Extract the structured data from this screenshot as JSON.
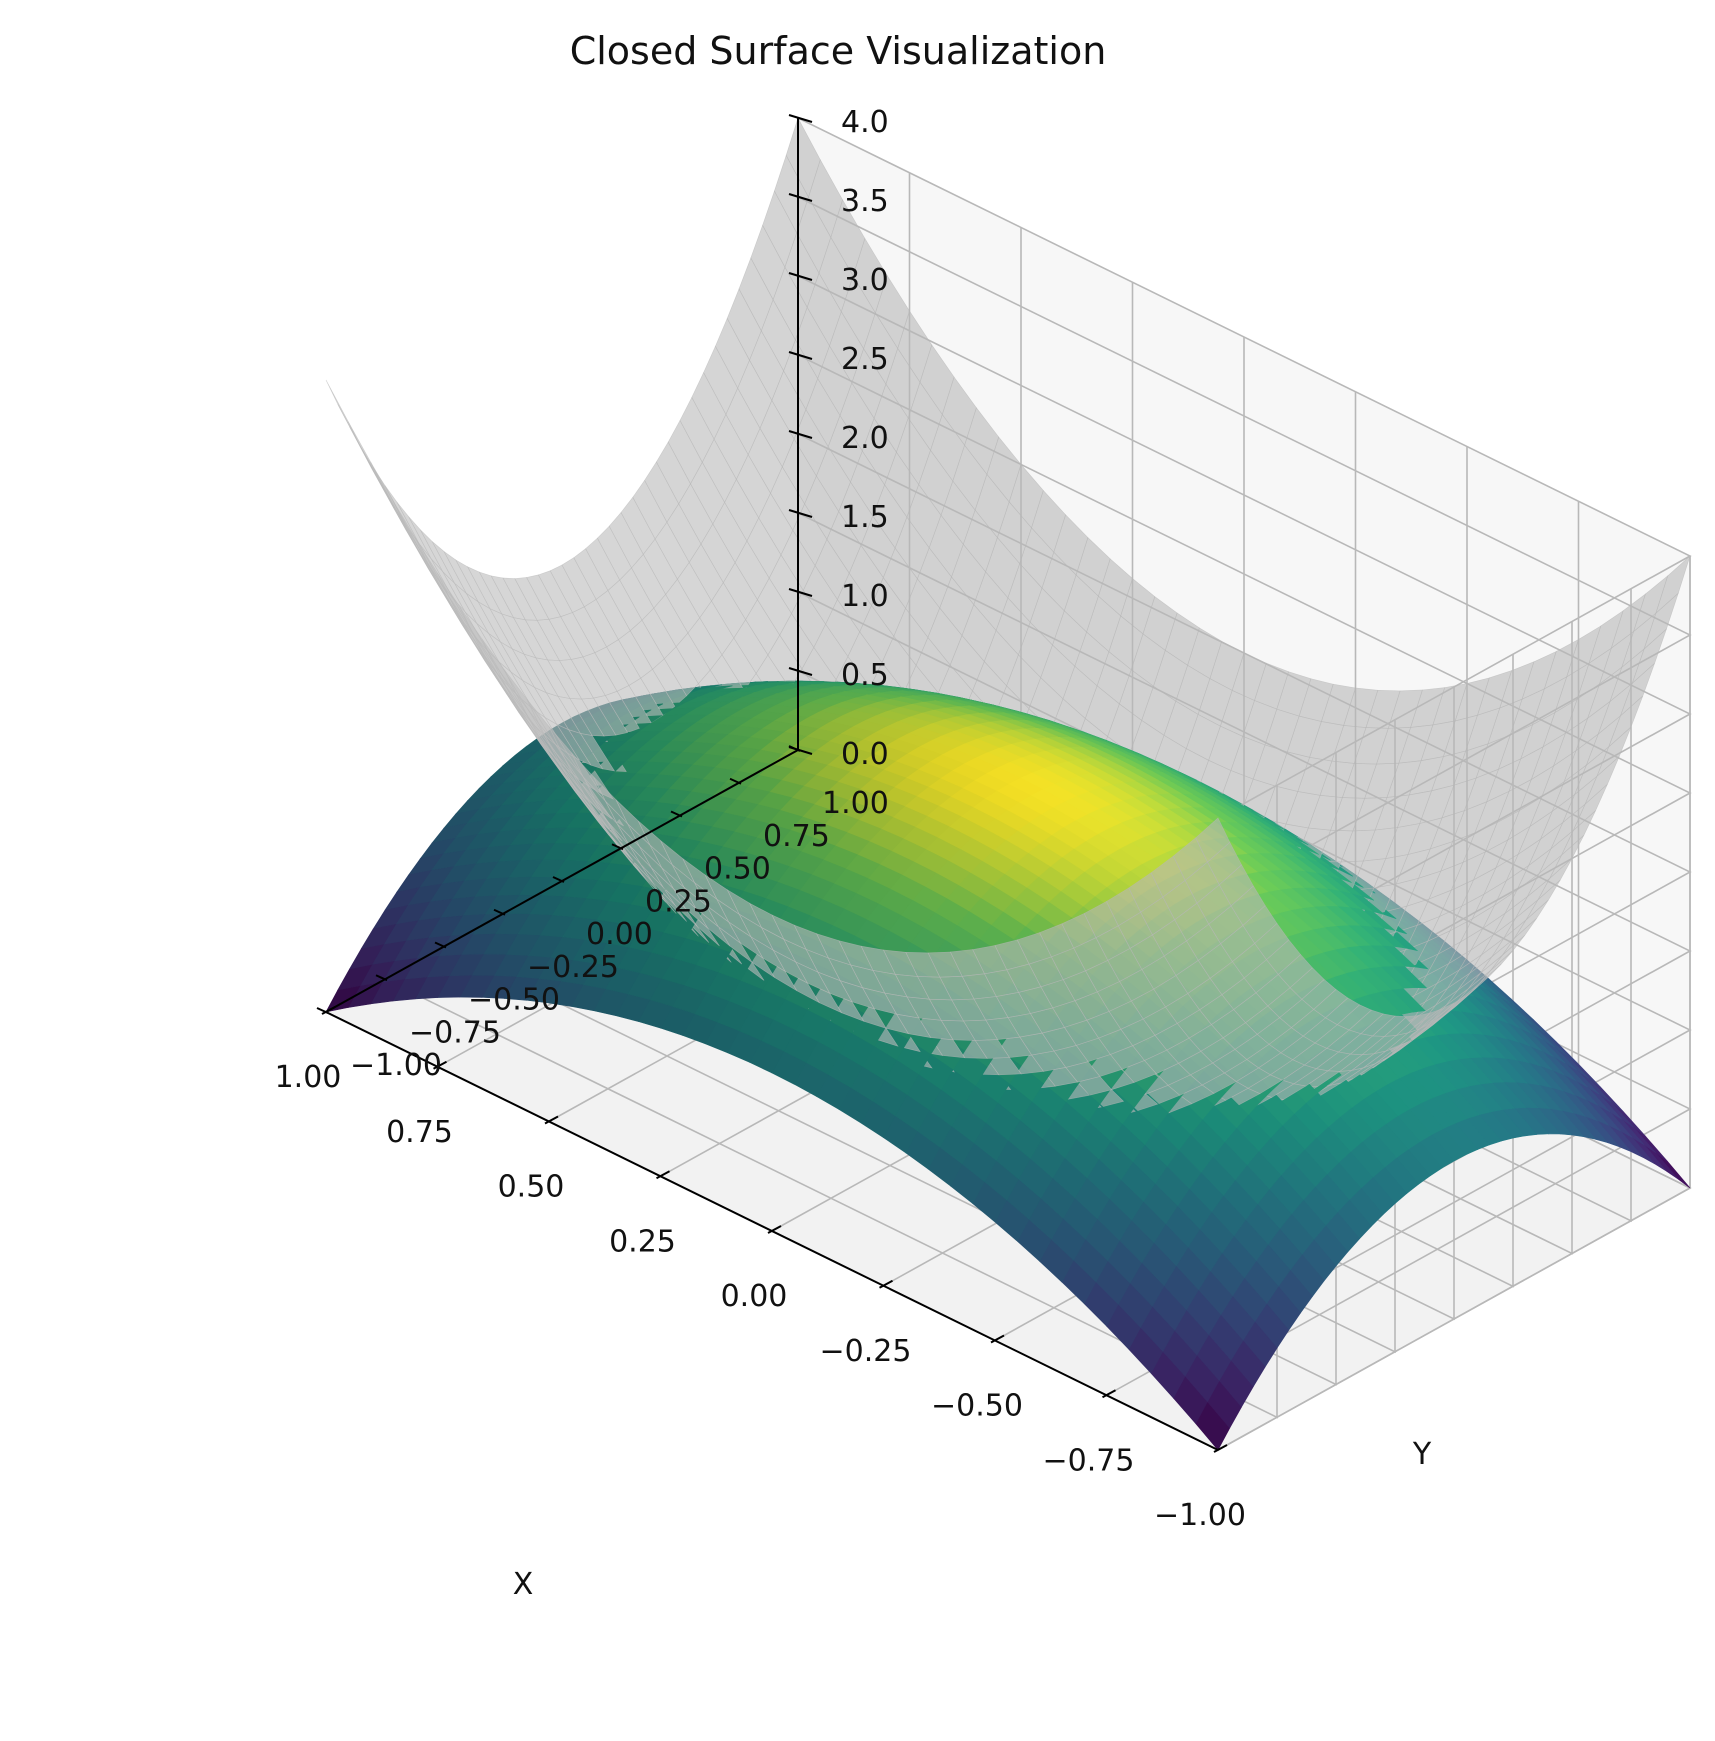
{
  "chart_data": {
    "type": "surface3d",
    "title": "Closed Surface Visualization",
    "xlabel": "X",
    "ylabel": "Y",
    "zlabel": "",
    "xlim": [
      -1.0,
      1.0
    ],
    "ylim": [
      -1.0,
      1.0
    ],
    "zlim": [
      0.0,
      4.0
    ],
    "x_ticks": [
      -1.0,
      -0.75,
      -0.5,
      -0.25,
      0.0,
      0.25,
      0.5,
      0.75,
      1.0
    ],
    "x_tick_labels": [
      "−1.00",
      "−0.75",
      "−0.50",
      "−0.25",
      "0.00",
      "0.25",
      "0.50",
      "0.75",
      "1.00"
    ],
    "y_ticks": [
      -1.0,
      -0.75,
      -0.5,
      -0.25,
      0.0,
      0.25,
      0.5,
      0.75,
      1.0
    ],
    "y_tick_labels": [
      "−1.00",
      "−0.75",
      "−0.50",
      "−0.25",
      "0.00",
      "0.25",
      "0.50",
      "0.75",
      "1.00"
    ],
    "z_ticks": [
      0.0,
      0.5,
      1.0,
      1.5,
      2.0,
      2.5,
      3.0,
      3.5,
      4.0
    ],
    "z_tick_labels": [
      "0.0",
      "0.5",
      "1.0",
      "1.5",
      "2.0",
      "2.5",
      "3.0",
      "3.5",
      "4.0"
    ],
    "grid": true,
    "series": [
      {
        "role": "upper-cap",
        "formula": "z = 2 - x^2 - y^2",
        "colormap": "viridis",
        "z_range": [
          0.0,
          2.0
        ],
        "opacity": 1.0
      },
      {
        "role": "lower-bowl",
        "formula": "z = 2*(x^2 + y^2)",
        "color": "#bdbdbd",
        "z_range": [
          0.0,
          4.0
        ],
        "opacity": 0.6
      }
    ]
  }
}
